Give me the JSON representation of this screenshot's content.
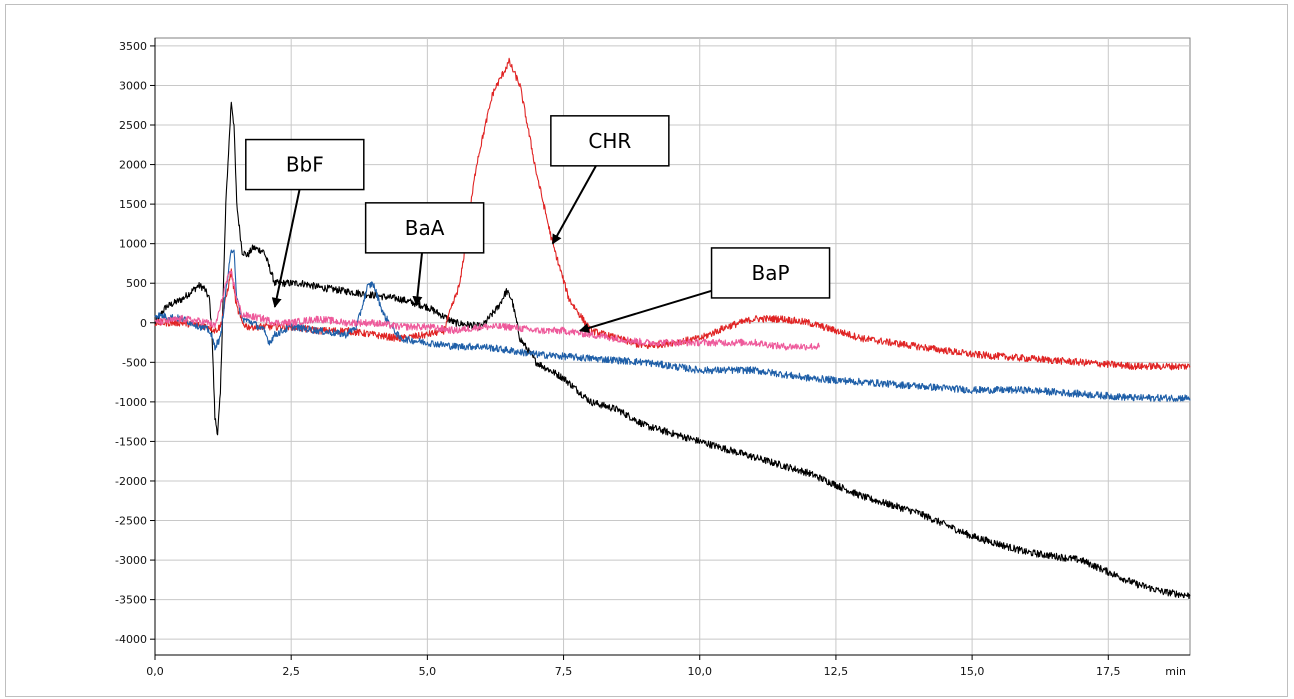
{
  "chart_data": {
    "type": "line",
    "title": "",
    "xlabel": "",
    "ylabel": "",
    "x_unit": "min",
    "xlim": [
      0,
      19
    ],
    "ylim": [
      -4200,
      3600
    ],
    "x_ticks": [
      "0,0",
      "2,5",
      "5,0",
      "7,5",
      "10,0",
      "12,5",
      "15,0",
      "17,5"
    ],
    "x_tick_values": [
      0,
      2.5,
      5,
      7.5,
      10,
      12.5,
      15,
      17.5
    ],
    "y_ticks": [
      "3500",
      "3000",
      "2500",
      "2000",
      "1500",
      "1000",
      "500",
      "0",
      "-500",
      "-1000",
      "-1500",
      "-2000",
      "-2500",
      "-3000",
      "-3500",
      "-4000"
    ],
    "y_tick_values": [
      3500,
      3000,
      2500,
      2000,
      1500,
      1000,
      500,
      0,
      -500,
      -1000,
      -1500,
      -2000,
      -2500,
      -3000,
      -3500,
      -4000
    ],
    "grid": true,
    "series": [
      {
        "color": "#000000",
        "x": [
          0.0,
          0.2,
          0.5,
          0.8,
          0.9,
          1.0,
          1.05,
          1.1,
          1.15,
          1.2,
          1.3,
          1.4,
          1.45,
          1.5,
          1.6,
          1.7,
          1.8,
          2.0,
          2.2,
          2.4,
          2.7,
          3.0,
          3.5,
          4.0,
          4.5,
          5.0,
          5.5,
          6.0,
          6.3,
          6.45,
          6.55,
          6.7,
          7.0,
          7.5,
          8.0,
          8.5,
          9.0,
          10.0,
          11.0,
          12.0,
          13.0,
          14.0,
          15.0,
          16.0,
          17.0,
          18.0,
          18.5,
          19.0
        ],
        "y": [
          0,
          200,
          300,
          470,
          440,
          300,
          -200,
          -1200,
          -1400,
          -900,
          1500,
          2800,
          2500,
          1500,
          900,
          850,
          950,
          900,
          500,
          500,
          500,
          450,
          400,
          350,
          300,
          200,
          0,
          -50,
          200,
          400,
          300,
          -200,
          -500,
          -700,
          -1000,
          -1100,
          -1300,
          -1500,
          -1700,
          -1900,
          -2200,
          -2400,
          -2700,
          -2900,
          -3000,
          -3300,
          -3400,
          -3450
        ]
      },
      {
        "color": "#e02424",
        "x": [
          0.0,
          0.5,
          1.0,
          1.1,
          1.2,
          1.3,
          1.4,
          1.5,
          1.6,
          1.7,
          2.0,
          2.5,
          3.0,
          3.5,
          4.0,
          4.5,
          5.0,
          5.3,
          5.6,
          5.9,
          6.2,
          6.5,
          6.7,
          7.0,
          7.3,
          7.6,
          8.0,
          8.5,
          9.0,
          10.0,
          10.5,
          11.0,
          11.5,
          12.0,
          12.5,
          13.0,
          14.0,
          15.0,
          16.0,
          17.0,
          18.0,
          19.0
        ],
        "y": [
          0,
          0,
          -50,
          -100,
          -50,
          300,
          650,
          200,
          0,
          -50,
          -50,
          -50,
          -100,
          -100,
          -150,
          -200,
          -150,
          -100,
          500,
          2000,
          2900,
          3300,
          3000,
          1900,
          1000,
          300,
          -100,
          -200,
          -300,
          -200,
          -50,
          50,
          50,
          0,
          -100,
          -200,
          -300,
          -400,
          -450,
          -500,
          -550,
          -550
        ]
      },
      {
        "color": "#1f5fa8",
        "x": [
          0.0,
          0.5,
          1.0,
          1.1,
          1.2,
          1.3,
          1.4,
          1.45,
          1.5,
          1.6,
          1.8,
          2.0,
          2.1,
          2.2,
          2.5,
          3.0,
          3.5,
          3.7,
          3.9,
          4.0,
          4.2,
          4.5,
          5.0,
          5.5,
          6.0,
          6.5,
          7.0,
          8.0,
          9.0,
          10.0,
          11.0,
          12.0,
          13.0,
          14.0,
          15.0,
          16.0,
          17.0,
          18.0,
          19.0
        ],
        "y": [
          100,
          50,
          -100,
          -300,
          -200,
          400,
          900,
          950,
          300,
          50,
          0,
          -100,
          -250,
          -150,
          -50,
          -100,
          -150,
          -50,
          450,
          500,
          100,
          -200,
          -250,
          -300,
          -300,
          -350,
          -400,
          -450,
          -500,
          -600,
          -600,
          -700,
          -750,
          -800,
          -850,
          -850,
          -900,
          -950,
          -950
        ]
      },
      {
        "color": "#ee5a9b",
        "x": [
          0.0,
          0.5,
          1.0,
          1.1,
          1.2,
          1.3,
          1.4,
          1.5,
          1.6,
          2.0,
          2.2,
          2.5,
          3.0,
          3.5,
          4.0,
          4.5,
          5.0,
          5.5,
          6.0,
          6.5,
          7.0,
          7.5,
          8.0,
          8.5,
          9.0,
          9.5,
          10.0,
          10.5,
          11.0,
          11.5,
          12.0,
          12.2
        ],
        "y": [
          0,
          50,
          0,
          -50,
          200,
          500,
          650,
          300,
          100,
          50,
          0,
          0,
          50,
          0,
          0,
          -50,
          -50,
          -100,
          -50,
          -50,
          -100,
          -100,
          -150,
          -200,
          -250,
          -250,
          -250,
          -250,
          -250,
          -300,
          -300,
          -300
        ]
      }
    ],
    "annotations": [
      {
        "text": "BbF",
        "label_x": 2.75,
        "label_y": 2000,
        "arrow_x": 2.2,
        "arrow_y": 200
      },
      {
        "text": "BaA",
        "label_x": 4.95,
        "label_y": 1200,
        "arrow_x": 4.8,
        "arrow_y": 220
      },
      {
        "text": "CHR",
        "label_x": 8.35,
        "label_y": 2300,
        "arrow_x": 7.3,
        "arrow_y": 1000
      },
      {
        "text": "BaP",
        "label_x": 11.3,
        "label_y": 630,
        "arrow_x": 7.8,
        "arrow_y": -100
      }
    ]
  }
}
